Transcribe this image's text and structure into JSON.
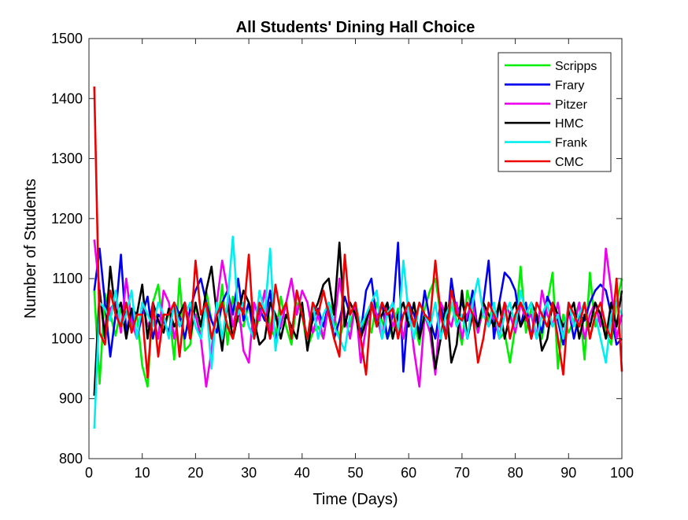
{
  "chart_data": {
    "type": "line",
    "title": "All Students' Dining Hall Choice",
    "xlabel": "Time (Days)",
    "ylabel": "Number of Students",
    "xlim": [
      0,
      100
    ],
    "ylim": [
      800,
      1500
    ],
    "xticks": [
      0,
      10,
      20,
      30,
      40,
      50,
      60,
      70,
      80,
      90,
      100
    ],
    "yticks": [
      800,
      900,
      1000,
      1100,
      1200,
      1300,
      1400,
      1500
    ],
    "grid": false,
    "legend_position": "top-right",
    "x": [
      1,
      2,
      3,
      4,
      5,
      6,
      7,
      8,
      9,
      10,
      11,
      12,
      13,
      14,
      15,
      16,
      17,
      18,
      19,
      20,
      21,
      22,
      23,
      24,
      25,
      26,
      27,
      28,
      29,
      30,
      31,
      32,
      33,
      34,
      35,
      36,
      37,
      38,
      39,
      40,
      41,
      42,
      43,
      44,
      45,
      46,
      47,
      48,
      49,
      50,
      51,
      52,
      53,
      54,
      55,
      56,
      57,
      58,
      59,
      60,
      61,
      62,
      63,
      64,
      65,
      66,
      67,
      68,
      69,
      70,
      71,
      72,
      73,
      74,
      75,
      76,
      77,
      78,
      79,
      80,
      81,
      82,
      83,
      84,
      85,
      86,
      87,
      88,
      89,
      90,
      91,
      92,
      93,
      94,
      95,
      96,
      97,
      98,
      99,
      100
    ],
    "series": [
      {
        "name": "Scripps",
        "color": "#00ee00",
        "values": [
          1080,
          925,
          1075,
          1040,
          1005,
          1050,
          1060,
          1020,
          1040,
          955,
          920,
          1060,
          1090,
          1010,
          1050,
          965,
          1100,
          980,
          990,
          1060,
          1000,
          1080,
          1030,
          1010,
          1090,
          990,
          1070,
          1030,
          1020,
          1060,
          1000,
          1040,
          1080,
          1020,
          1000,
          1070,
          1020,
          990,
          1060,
          1040,
          985,
          1010,
          1020,
          1000,
          1060,
          1040,
          1000,
          1030,
          1020,
          1060,
          1000,
          1040,
          1010,
          1060,
          1030,
          1000,
          1020,
          1050,
          1000,
          1040,
          1030,
          990,
          1050,
          1080,
          1100,
          1040,
          1000,
          1060,
          1030,
          990,
          1080,
          1040,
          1010,
          1050,
          1030,
          1060,
          1000,
          1010,
          960,
          1020,
          1120,
          1010,
          1050,
          1030,
          1000,
          1060,
          1110,
          950,
          1040,
          1010,
          1030,
          1060,
          965,
          1110,
          1020,
          1040,
          1010,
          990,
          1060,
          1100
        ]
      },
      {
        "name": "Frary",
        "color": "#0000ee",
        "values": [
          1080,
          1150,
          1060,
          970,
          1040,
          1140,
          1010,
          1050,
          1000,
          1040,
          1070,
          1000,
          1040,
          1030,
          1010,
          1060,
          1040,
          1000,
          1050,
          1080,
          1100,
          1060,
          1030,
          1010,
          1060,
          1080,
          1040,
          1100,
          1030,
          1060,
          1000,
          1050,
          1030,
          1080,
          1000,
          1020,
          1060,
          1000,
          1080,
          1040,
          1000,
          1030,
          1050,
          1020,
          1060,
          1000,
          1030,
          1070,
          1040,
          1060,
          1010,
          1080,
          1100,
          1030,
          1060,
          1000,
          1040,
          1160,
          945,
          1060,
          1040,
          1010,
          1080,
          1030,
          1000,
          1060,
          1000,
          1100,
          1040,
          1060,
          1030,
          1080,
          1010,
          1060,
          1130,
          1000,
          1060,
          1110,
          1100,
          1080,
          1020,
          1060,
          1000,
          1040,
          1010,
          1070,
          1050,
          1030,
          990,
          1050,
          1000,
          1040,
          1030,
          1060,
          1080,
          1090,
          1080,
          1040,
          990,
          1000
        ]
      },
      {
        "name": "Pitzer",
        "color": "#ee00ee",
        "values": [
          1165,
          1080,
          1010,
          1050,
          1060,
          1010,
          1100,
          1030,
          1000,
          1060,
          1020,
          1040,
          1000,
          1080,
          1060,
          1000,
          1040,
          1060,
          1020,
          1040,
          1000,
          920,
          980,
          1060,
          1130,
          1080,
          1020,
          1060,
          980,
          960,
          1060,
          1030,
          1080,
          1000,
          1040,
          1020,
          1060,
          1100,
          1040,
          1080,
          1060,
          1010,
          1040,
          1000,
          1060,
          1020,
          1100,
          1040,
          1000,
          1060,
          960,
          1020,
          1060,
          1040,
          1000,
          1060,
          1020,
          1040,
          1000,
          1060,
          980,
          920,
          1040,
          1010,
          940,
          1060,
          1040,
          1020,
          1060,
          1000,
          1040,
          1060,
          1010,
          1060,
          1020,
          1040,
          1000,
          1060,
          1040,
          1010,
          1060,
          1030,
          1040,
          1000,
          1080,
          1040,
          1020,
          1060,
          1000,
          1040,
          1020,
          1060,
          1000,
          1040,
          1060,
          1020,
          1150,
          1080,
          1000,
          1040
        ]
      },
      {
        "name": "HMC",
        "color": "#000000",
        "values": [
          905,
          1080,
          1000,
          1120,
          1040,
          1060,
          1000,
          1050,
          1040,
          1090,
          1000,
          1060,
          1030,
          1010,
          1050,
          1020,
          1040,
          1060,
          1000,
          1060,
          1020,
          1080,
          1120,
          1040,
          980,
          1060,
          1000,
          1040,
          1080,
          1060,
          1030,
          990,
          1000,
          1060,
          1040,
          1000,
          1040,
          1020,
          1000,
          1060,
          980,
          1040,
          1060,
          1090,
          1100,
          1040,
          1160,
          1020,
          1060,
          1040,
          1000,
          1030,
          1060,
          1020,
          1040,
          1060,
          1000,
          1040,
          1060,
          1020,
          1060,
          1000,
          1040,
          1030,
          950,
          1000,
          1060,
          960,
          990,
          1080,
          1000,
          1040,
          1020,
          1060,
          1040,
          1020,
          1060,
          1000,
          1040,
          1060,
          1020,
          1040,
          1060,
          1040,
          980,
          1000,
          1060,
          1040,
          1020,
          1040,
          1060,
          1000,
          1040,
          1020,
          1060,
          1040,
          1000,
          1060,
          1020,
          1080
        ]
      },
      {
        "name": "Frank",
        "color": "#00eeee",
        "values": [
          850,
          1060,
          1050,
          1030,
          1080,
          1020,
          1040,
          1080,
          1000,
          1060,
          1040,
          1020,
          1060,
          1040,
          1000,
          1060,
          1020,
          1040,
          1060,
          1020,
          1000,
          1060,
          950,
          1060,
          1000,
          1060,
          1170,
          1040,
          1060,
          1020,
          1000,
          1080,
          1040,
          1150,
          980,
          1040,
          1060,
          1000,
          1080,
          1040,
          1000,
          1060,
          1000,
          1040,
          1060,
          1020,
          1000,
          980,
          1040,
          1060,
          1020,
          1040,
          1060,
          1080,
          1000,
          1040,
          1060,
          1010,
          1130,
          1040,
          1000,
          1060,
          1040,
          1020,
          1060,
          1000,
          1040,
          1060,
          1020,
          1040,
          1000,
          1060,
          1100,
          1040,
          1020,
          1060,
          1000,
          1040,
          1060,
          1020,
          1080,
          1040,
          1060,
          1000,
          1040,
          1060,
          1020,
          1040,
          1000,
          1060,
          1020,
          1040,
          1060,
          1000,
          1040,
          1000,
          960,
          1040,
          1060,
          1040
        ]
      },
      {
        "name": "CMC",
        "color": "#ee0000",
        "values": [
          1420,
          1010,
          990,
          1080,
          1040,
          1020,
          1060,
          1010,
          1040,
          1040,
          935,
          1060,
          970,
          1040,
          1040,
          1060,
          970,
          1060,
          1000,
          1130,
          1040,
          1060,
          1000,
          1040,
          1060,
          1020,
          1000,
          1060,
          1040,
          1140,
          1000,
          1060,
          1040,
          1000,
          1090,
          1040,
          1060,
          1000,
          1080,
          1040,
          1000,
          1060,
          1040,
          1080,
          1040,
          1000,
          970,
          1140,
          1040,
          1060,
          1000,
          940,
          1060,
          1020,
          1060,
          1040,
          1050,
          1000,
          1040,
          1060,
          1020,
          1060,
          1040,
          1030,
          1130,
          1040,
          1000,
          1080,
          1040,
          1030,
          1060,
          1040,
          960,
          1000,
          1060,
          1040,
          1020,
          1060,
          1000,
          1040,
          1060,
          1040,
          1000,
          1060,
          1040,
          1020,
          1060,
          1000,
          940,
          1060,
          1040,
          1020,
          1060,
          1000,
          1040,
          1060,
          1020,
          1000,
          1100,
          945
        ]
      }
    ]
  }
}
